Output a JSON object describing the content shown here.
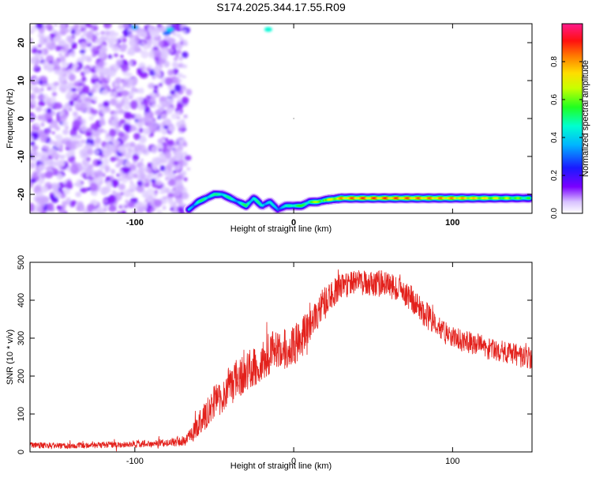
{
  "title": "S174.2025.344.17.55.R09",
  "colors": {
    "snr_line": "#e3201b",
    "background": "#ffffff",
    "axis": "#000000"
  },
  "chart_data": [
    {
      "type": "heatmap",
      "id": "spectrogram",
      "xlabel": "Height of straight line (km)",
      "ylabel": "Frequency (Hz)",
      "xlim": [
        -166,
        150
      ],
      "ylim": [
        -25,
        25
      ],
      "xticks": [
        -100,
        0,
        100
      ],
      "xtick_labels": [
        "-100",
        "0",
        "100"
      ],
      "yticks": [
        20,
        10,
        0,
        -10,
        -20
      ],
      "ytick_labels": [
        "20",
        "10",
        "0",
        "-10",
        "-20"
      ],
      "colorbar": {
        "label": "Normalized spectral amplitude",
        "range": [
          0,
          1
        ],
        "ticks": [
          0.0,
          0.2,
          0.4,
          0.6,
          0.8
        ],
        "tick_labels": [
          "0.0",
          "0.2",
          "0.4",
          "0.6",
          "0.8"
        ],
        "colormap": "rainbow (white-violet-blue-cyan-green-yellow-red-magenta)"
      },
      "noise_region_x": [
        -166,
        -68
      ],
      "signal_track": {
        "description": "dominant frequency ridge vs height",
        "x": [
          -66,
          -60,
          -55,
          -50,
          -45,
          -40,
          -35,
          -30,
          -25,
          -20,
          -15,
          -10,
          -5,
          0,
          5,
          10,
          15,
          20,
          30,
          40,
          60,
          80,
          100,
          120,
          140,
          148
        ],
        "freq_hz": [
          -24,
          -22,
          -21,
          -20,
          -20,
          -21,
          -22,
          -23,
          -21,
          -23,
          -22,
          -24,
          -23,
          -23,
          -23,
          -22,
          -22,
          -21.5,
          -21,
          -21,
          -21,
          -21,
          -21,
          -21,
          -21,
          -21
        ],
        "amplitude": [
          0.35,
          0.45,
          0.5,
          0.45,
          0.5,
          0.45,
          0.4,
          0.5,
          0.45,
          0.45,
          0.4,
          0.35,
          0.4,
          0.55,
          0.5,
          0.55,
          0.6,
          0.65,
          0.8,
          0.85,
          0.85,
          0.82,
          0.8,
          0.72,
          0.6,
          0.55
        ]
      }
    },
    {
      "type": "line",
      "id": "snr",
      "xlabel": "Height of straight line (km)",
      "ylabel": "SNR (10 * v/v)",
      "xlim": [
        -166,
        150
      ],
      "ylim": [
        0,
        500
      ],
      "xticks": [
        -100,
        0,
        100
      ],
      "xtick_labels": [
        "-100",
        "0",
        "100"
      ],
      "yticks": [
        0,
        100,
        200,
        300,
        400,
        500
      ],
      "ytick_labels": [
        "0",
        "100",
        "200",
        "300",
        "400",
        "500"
      ],
      "series": [
        {
          "name": "SNR",
          "x": [
            -166,
            -150,
            -130,
            -110,
            -90,
            -75,
            -68,
            -62,
            -58,
            -54,
            -50,
            -45,
            -40,
            -35,
            -30,
            -25,
            -20,
            -15,
            -10,
            -5,
            0,
            5,
            10,
            15,
            20,
            25,
            30,
            35,
            40,
            45,
            50,
            55,
            60,
            65,
            70,
            75,
            80,
            85,
            90,
            95,
            100,
            105,
            110,
            115,
            120,
            125,
            130,
            135,
            140,
            145,
            150
          ],
          "values": [
            18,
            16,
            17,
            20,
            22,
            26,
            30,
            55,
            85,
            105,
            130,
            150,
            175,
            195,
            215,
            225,
            245,
            260,
            270,
            270,
            280,
            305,
            335,
            365,
            395,
            420,
            435,
            440,
            450,
            445,
            440,
            445,
            440,
            430,
            420,
            400,
            375,
            355,
            330,
            315,
            300,
            295,
            290,
            285,
            275,
            270,
            265,
            260,
            255,
            250,
            245
          ],
          "noise_amplitude": [
            8,
            8,
            8,
            9,
            10,
            12,
            14,
            25,
            35,
            40,
            45,
            50,
            55,
            55,
            55,
            55,
            55,
            55,
            55,
            55,
            55,
            50,
            45,
            45,
            45,
            40,
            35,
            35,
            30,
            35,
            35,
            35,
            35,
            35,
            35,
            35,
            35,
            35,
            30,
            30,
            30,
            30,
            30,
            30,
            30,
            30,
            30,
            30,
            30,
            30,
            30
          ]
        }
      ]
    }
  ]
}
